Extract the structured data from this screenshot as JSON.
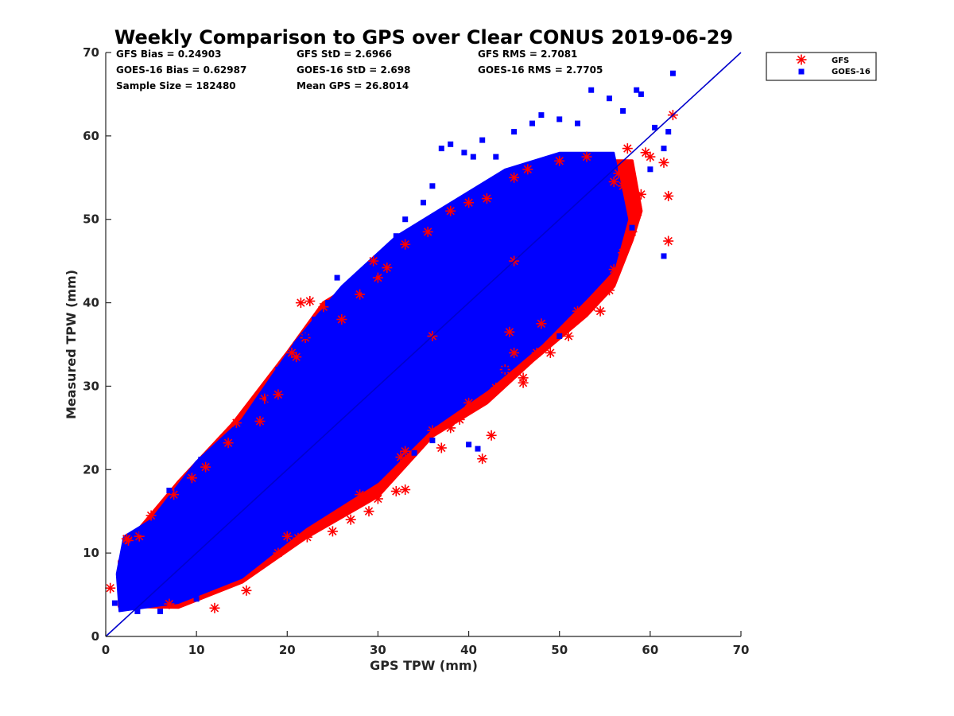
{
  "chart_data": {
    "type": "scatter",
    "title": "Weekly Comparison to GPS over Clear CONUS 2019-06-29",
    "xlabel": "GPS TPW (mm)",
    "ylabel": "Measured TPW (mm)",
    "xlim": [
      0,
      70
    ],
    "ylim": [
      0,
      70
    ],
    "xticks": [
      "0",
      "10",
      "20",
      "30",
      "40",
      "50",
      "60",
      "70"
    ],
    "yticks": [
      "0",
      "10",
      "20",
      "30",
      "40",
      "50",
      "60",
      "70"
    ],
    "grid": false,
    "legend_position": "outside top-right",
    "reference_line": {
      "from": [
        0,
        0
      ],
      "to": [
        70,
        70
      ],
      "color": "#0000cc"
    },
    "stats": [
      {
        "text": "GFS Bias = 0.24903"
      },
      {
        "text": "GFS StD = 2.6966"
      },
      {
        "text": "GFS RMS = 2.7081"
      },
      {
        "text": "GOES-16 Bias = 0.62987"
      },
      {
        "text": "GOES-16 StD = 2.698"
      },
      {
        "text": "GOES-16 RMS = 2.7705"
      },
      {
        "text": "Sample Size = 182480"
      },
      {
        "text": "Mean GPS = 26.8014"
      }
    ],
    "series": [
      {
        "name": "GFS",
        "marker": "asterisk",
        "color": "#ff0000",
        "points": [
          [
            0.5,
            5.8
          ],
          [
            2.3,
            11.7
          ],
          [
            2.5,
            11.5
          ],
          [
            3.7,
            12.0
          ],
          [
            7.0,
            3.9
          ],
          [
            12.0,
            3.4
          ],
          [
            15.5,
            5.5
          ],
          [
            14.4,
            25.6
          ],
          [
            13.5,
            23.2
          ],
          [
            17.0,
            25.8
          ],
          [
            19.0,
            10.0
          ],
          [
            20.0,
            12.0
          ],
          [
            21.2,
            11.8
          ],
          [
            22.2,
            11.9
          ],
          [
            25.0,
            12.6
          ],
          [
            27.0,
            14.0
          ],
          [
            28.0,
            17.0
          ],
          [
            29.0,
            15.0
          ],
          [
            30.0,
            16.5
          ],
          [
            32.0,
            17.4
          ],
          [
            33.0,
            17.6
          ],
          [
            32.5,
            21.5
          ],
          [
            33.0,
            22.2
          ],
          [
            36.0,
            24.7
          ],
          [
            37.0,
            22.6
          ],
          [
            38.0,
            25.0
          ],
          [
            39.0,
            26.0
          ],
          [
            40.0,
            28.0
          ],
          [
            41.5,
            21.3
          ],
          [
            42.5,
            24.1
          ],
          [
            43.0,
            29.8
          ],
          [
            44.0,
            32.0
          ],
          [
            44.5,
            36.5
          ],
          [
            45.0,
            34.0
          ],
          [
            46.0,
            31.0
          ],
          [
            46.0,
            30.4
          ],
          [
            47.5,
            34.0
          ],
          [
            48.0,
            37.5
          ],
          [
            49.0,
            34.0
          ],
          [
            51.0,
            36.0
          ],
          [
            52.0,
            39.0
          ],
          [
            53.5,
            39.5
          ],
          [
            54.5,
            39.0
          ],
          [
            55.5,
            41.5
          ],
          [
            55.5,
            42.3
          ],
          [
            56.0,
            44.0
          ],
          [
            57.0,
            46.0
          ],
          [
            57.5,
            47.3
          ],
          [
            58.0,
            48.5
          ],
          [
            58.5,
            50.5
          ],
          [
            58.5,
            51.5
          ],
          [
            59.0,
            53.0
          ],
          [
            62.0,
            52.8
          ],
          [
            62.0,
            47.4
          ],
          [
            61.5,
            56.8
          ],
          [
            60.0,
            57.5
          ],
          [
            59.5,
            58.0
          ],
          [
            57.0,
            54.0
          ],
          [
            56.0,
            54.5
          ],
          [
            56.5,
            55.5
          ],
          [
            57.5,
            58.5
          ],
          [
            62.5,
            62.5
          ],
          [
            21.5,
            40.0
          ],
          [
            22.5,
            40.2
          ],
          [
            24.0,
            39.5
          ],
          [
            20.5,
            34.0
          ],
          [
            21.0,
            33.5
          ],
          [
            22.0,
            35.8
          ],
          [
            19.0,
            29.0
          ],
          [
            17.5,
            28.5
          ],
          [
            26.0,
            38.0
          ],
          [
            28.0,
            41.0
          ],
          [
            30.0,
            43.0
          ],
          [
            31.0,
            44.2
          ],
          [
            29.5,
            45.0
          ],
          [
            33.0,
            47.0
          ],
          [
            35.5,
            48.5
          ],
          [
            38.0,
            51.0
          ],
          [
            40.0,
            52.0
          ],
          [
            42.0,
            52.5
          ],
          [
            45.0,
            55.0
          ],
          [
            46.5,
            56.0
          ],
          [
            50.0,
            57.0
          ],
          [
            53.0,
            57.5
          ],
          [
            5.0,
            14.5
          ],
          [
            7.5,
            17.0
          ],
          [
            9.5,
            19.0
          ],
          [
            11.0,
            20.3
          ],
          [
            36.0,
            36.0
          ],
          [
            45.0,
            45.0
          ]
        ]
      },
      {
        "name": "GOES-16",
        "marker": "square",
        "color": "#0000ff",
        "points": [
          [
            1.0,
            4.0
          ],
          [
            2.0,
            3.5
          ],
          [
            2.5,
            8.0
          ],
          [
            3.0,
            11.0
          ],
          [
            4.0,
            12.5
          ],
          [
            5.0,
            13.5
          ],
          [
            7.0,
            17.5
          ],
          [
            9.0,
            18.5
          ],
          [
            10.5,
            21.2
          ],
          [
            12.0,
            21.0
          ],
          [
            13.0,
            22.0
          ],
          [
            15.0,
            24.0
          ],
          [
            17.0,
            28.0
          ],
          [
            18.0,
            28.5
          ],
          [
            19.0,
            32.0
          ],
          [
            20.0,
            31.5
          ],
          [
            21.0,
            35.0
          ],
          [
            22.0,
            36.0
          ],
          [
            23.0,
            38.0
          ],
          [
            24.5,
            40.0
          ],
          [
            25.5,
            43.0
          ],
          [
            27.0,
            39.5
          ],
          [
            28.5,
            41.5
          ],
          [
            29.5,
            43.5
          ],
          [
            31.0,
            46.0
          ],
          [
            32.0,
            48.0
          ],
          [
            33.0,
            50.0
          ],
          [
            34.5,
            47.0
          ],
          [
            35.0,
            52.0
          ],
          [
            36.0,
            54.0
          ],
          [
            37.0,
            58.5
          ],
          [
            38.0,
            59.0
          ],
          [
            39.5,
            58.0
          ],
          [
            40.5,
            57.5
          ],
          [
            41.5,
            59.5
          ],
          [
            43.0,
            57.5
          ],
          [
            45.0,
            60.5
          ],
          [
            47.0,
            61.5
          ],
          [
            48.0,
            62.5
          ],
          [
            50.0,
            62.0
          ],
          [
            52.0,
            61.5
          ],
          [
            53.5,
            65.5
          ],
          [
            55.5,
            64.5
          ],
          [
            57.0,
            63.0
          ],
          [
            58.5,
            65.5
          ],
          [
            59.0,
            65.0
          ],
          [
            60.5,
            61.0
          ],
          [
            62.0,
            60.5
          ],
          [
            62.5,
            67.5
          ],
          [
            61.5,
            58.5
          ],
          [
            61.5,
            45.6
          ],
          [
            60.0,
            56.0
          ],
          [
            58.0,
            49.0
          ],
          [
            55.0,
            44.5
          ],
          [
            50.0,
            36.0
          ],
          [
            44.0,
            32.0
          ],
          [
            41.0,
            22.5
          ],
          [
            40.0,
            23.0
          ],
          [
            36.0,
            23.5
          ],
          [
            34.0,
            22.0
          ],
          [
            30.0,
            21.0
          ],
          [
            27.0,
            19.5
          ],
          [
            24.0,
            17.0
          ],
          [
            22.0,
            15.5
          ],
          [
            20.0,
            14.0
          ],
          [
            18.0,
            10.0
          ],
          [
            15.0,
            8.0
          ],
          [
            13.0,
            6.5
          ],
          [
            10.0,
            4.5
          ],
          [
            6.0,
            3.0
          ],
          [
            3.5,
            3.0
          ],
          [
            34.0,
            45.0
          ],
          [
            40.0,
            49.0
          ],
          [
            46.0,
            53.0
          ],
          [
            48.0,
            48.0
          ],
          [
            38.0,
            38.0
          ],
          [
            26.0,
            26.0
          ],
          [
            14.0,
            14.0
          ],
          [
            8.0,
            8.0
          ],
          [
            30.0,
            34.0
          ]
        ]
      }
    ],
    "clouds": [
      {
        "series": "GFS",
        "lower": [
          [
            1.5,
            3.6
          ],
          [
            8,
            3.5
          ],
          [
            15,
            6.5
          ],
          [
            22,
            11.8
          ],
          [
            30,
            16.8
          ],
          [
            36,
            24.0
          ],
          [
            42,
            28.0
          ],
          [
            47,
            33.0
          ],
          [
            53,
            38.5
          ],
          [
            56,
            42.0
          ],
          [
            58,
            47.5
          ],
          [
            59,
            51.0
          ]
        ],
        "upper": [
          [
            58,
            57.0
          ],
          [
            52,
            57.0
          ],
          [
            45,
            55.0
          ],
          [
            38,
            50.5
          ],
          [
            30,
            44.0
          ],
          [
            24,
            40.0
          ],
          [
            20,
            34.0
          ],
          [
            14,
            25.5
          ],
          [
            8,
            18.5
          ],
          [
            3,
            12.0
          ],
          [
            1.5,
            9.0
          ]
        ]
      },
      {
        "series": "GOES-16",
        "lower": [
          [
            1.5,
            3.0
          ],
          [
            8,
            4.0
          ],
          [
            15,
            7.0
          ],
          [
            22,
            13.0
          ],
          [
            30,
            18.5
          ],
          [
            36,
            25.0
          ],
          [
            42,
            29.5
          ],
          [
            48,
            35.0
          ],
          [
            53,
            40.5
          ],
          [
            56,
            44.0
          ],
          [
            57.5,
            50.0
          ]
        ],
        "upper": [
          [
            56,
            58.0
          ],
          [
            50,
            58.0
          ],
          [
            44,
            56.0
          ],
          [
            38,
            52.0
          ],
          [
            32,
            48.0
          ],
          [
            26,
            42.0
          ],
          [
            21,
            35.5
          ],
          [
            15,
            26.0
          ],
          [
            10,
            21.0
          ],
          [
            5,
            14.0
          ],
          [
            2,
            12.0
          ],
          [
            1.2,
            7.5
          ]
        ]
      }
    ]
  }
}
